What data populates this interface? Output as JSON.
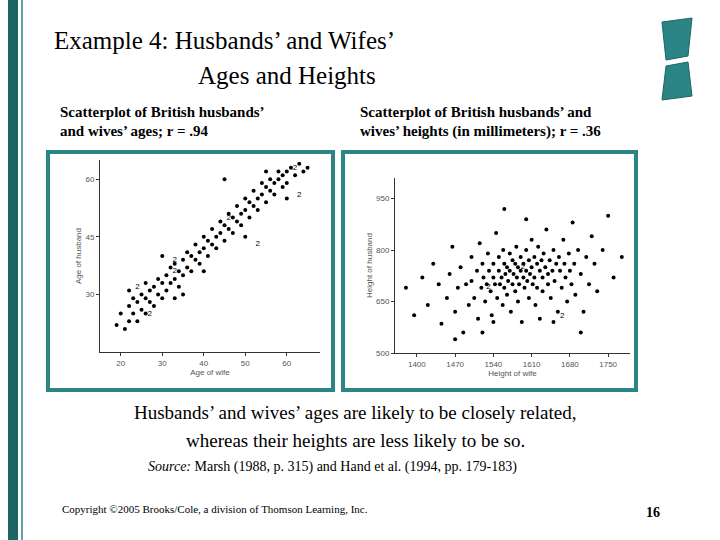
{
  "slide": {
    "title": [
      "Example 4: Husbands’ and Wifes’",
      "Ages and Heights"
    ],
    "caption": [
      "Husbands’ and wives’ ages are likely to be closely related,",
      "whereas their heights are less likely to be so."
    ],
    "source_label": "Source:",
    "source": "Marsh (1988, p. 315) and Hand et al. (1994, pp. 179-183)",
    "copyright": "Copyright ©2005 Brooks/Cole, a division of Thomson Learning, Inc.",
    "page": 16
  },
  "chart_data": [
    {
      "type": "scatter",
      "title": [
        "Scatterplot of British husbands’",
        "and wives’ ages; r = .94"
      ],
      "x_label": "Age of wife",
      "y_label": "Age of husband",
      "xlim": [
        15,
        68
      ],
      "ylim": [
        15,
        65
      ],
      "xticks": [
        20,
        30,
        40,
        50,
        60
      ],
      "yticks": [
        30,
        45,
        60
      ],
      "grid": false,
      "color": "#000000",
      "marker": "dot",
      "x": [
        19,
        20,
        21,
        22,
        22,
        23,
        23,
        24,
        24,
        25,
        25,
        26,
        26,
        27,
        27,
        28,
        28,
        29,
        29,
        30,
        30,
        31,
        31,
        32,
        32,
        33,
        33,
        34,
        34,
        35,
        35,
        36,
        36,
        37,
        37,
        38,
        38,
        39,
        39,
        40,
        40,
        41,
        41,
        42,
        42,
        43,
        43,
        44,
        44,
        45,
        45,
        46,
        46,
        47,
        47,
        48,
        48,
        49,
        49,
        50,
        50,
        51,
        51,
        52,
        52,
        53,
        53,
        54,
        54,
        55,
        55,
        56,
        56,
        57,
        57,
        58,
        58,
        59,
        59,
        60,
        60,
        61,
        62,
        63,
        64,
        65,
        45,
        30,
        35,
        50,
        55,
        40,
        60,
        33,
        26,
        22,
        27,
        24,
        33,
        33,
        53,
        46,
        62,
        63
      ],
      "values": [
        22,
        25,
        21,
        23,
        27,
        25,
        29,
        23,
        28,
        26,
        30,
        25,
        29,
        28,
        31,
        27,
        32,
        30,
        34,
        29,
        33,
        31,
        35,
        37,
        33,
        34,
        38,
        32,
        36,
        35,
        39,
        37,
        41,
        36,
        40,
        39,
        43,
        41,
        38,
        42,
        45,
        40,
        44,
        43,
        47,
        45,
        42,
        46,
        49,
        44,
        48,
        47,
        51,
        46,
        50,
        49,
        53,
        48,
        51,
        52,
        55,
        50,
        54,
        53,
        57,
        55,
        52,
        56,
        59,
        54,
        58,
        57,
        60,
        56,
        59,
        60,
        62,
        58,
        61,
        62,
        59,
        63,
        61,
        64,
        62,
        63,
        60,
        40,
        30,
        45,
        62,
        36,
        55,
        29,
        33,
        31,
        25,
        32,
        36,
        39,
        43,
        50,
        63,
        56
      ],
      "counts": [
        1,
        1,
        1,
        1,
        1,
        1,
        1,
        1,
        1,
        1,
        1,
        1,
        1,
        1,
        1,
        1,
        1,
        1,
        1,
        1,
        1,
        1,
        1,
        1,
        1,
        1,
        1,
        1,
        1,
        1,
        1,
        1,
        1,
        1,
        1,
        1,
        1,
        1,
        1,
        1,
        1,
        1,
        1,
        1,
        1,
        1,
        1,
        1,
        1,
        1,
        1,
        1,
        1,
        1,
        1,
        1,
        1,
        1,
        1,
        1,
        1,
        1,
        1,
        1,
        1,
        1,
        1,
        1,
        1,
        1,
        1,
        1,
        1,
        1,
        1,
        1,
        1,
        1,
        1,
        1,
        1,
        1,
        1,
        1,
        1,
        1,
        1,
        1,
        1,
        1,
        1,
        1,
        1,
        1,
        1,
        1,
        2,
        2,
        2,
        2,
        2,
        2,
        2,
        2
      ]
    },
    {
      "type": "scatter",
      "title": [
        "Scatterplot of British husbands’ and",
        "wives’ heights (in millimeters); r = .36"
      ],
      "x_label": "Height of wife",
      "y_label": "Height of husband",
      "xlim": [
        1360,
        1790
      ],
      "ylim": [
        500,
        1010
      ],
      "xticks": [
        1400,
        1470,
        1540,
        1610,
        1680,
        1750
      ],
      "yticks": [
        500,
        650,
        800,
        950
      ],
      "grid": false,
      "color": "#000000",
      "marker": "dot",
      "x": [
        1380,
        1395,
        1410,
        1420,
        1430,
        1440,
        1445,
        1455,
        1460,
        1465,
        1470,
        1475,
        1480,
        1485,
        1490,
        1495,
        1500,
        1500,
        1505,
        1510,
        1512,
        1515,
        1518,
        1520,
        1522,
        1525,
        1528,
        1530,
        1532,
        1535,
        1537,
        1540,
        1540,
        1543,
        1545,
        1547,
        1550,
        1550,
        1552,
        1555,
        1557,
        1558,
        1560,
        1560,
        1562,
        1565,
        1565,
        1567,
        1570,
        1570,
        1572,
        1575,
        1575,
        1577,
        1580,
        1580,
        1582,
        1583,
        1585,
        1585,
        1587,
        1590,
        1590,
        1592,
        1595,
        1595,
        1597,
        1600,
        1600,
        1602,
        1605,
        1605,
        1607,
        1610,
        1610,
        1612,
        1615,
        1615,
        1617,
        1620,
        1620,
        1622,
        1625,
        1625,
        1628,
        1630,
        1630,
        1632,
        1635,
        1637,
        1640,
        1640,
        1643,
        1645,
        1648,
        1650,
        1652,
        1655,
        1658,
        1660,
        1662,
        1665,
        1668,
        1670,
        1672,
        1675,
        1678,
        1680,
        1683,
        1685,
        1688,
        1690,
        1695,
        1700,
        1705,
        1710,
        1715,
        1720,
        1725,
        1730,
        1740,
        1750,
        1760,
        1775,
        1560,
        1600,
        1520,
        1470,
        1650,
        1700,
        1540,
        1531,
        1666,
        1594
      ],
      "values": [
        690,
        610,
        720,
        640,
        760,
        700,
        585,
        660,
        730,
        810,
        620,
        690,
        750,
        560,
        700,
        640,
        780,
        710,
        660,
        740,
        600,
        820,
        690,
        760,
        720,
        650,
        700,
        790,
        740,
        680,
        610,
        760,
        720,
        700,
        850,
        660,
        740,
        780,
        700,
        720,
        640,
        800,
        760,
        690,
        730,
        750,
        670,
        710,
        790,
        740,
        620,
        770,
        700,
        730,
        760,
        680,
        810,
        720,
        750,
        650,
        700,
        780,
        740,
        590,
        720,
        760,
        690,
        800,
        740,
        710,
        770,
        660,
        730,
        750,
        830,
        700,
        780,
        720,
        640,
        760,
        690,
        810,
        740,
        600,
        770,
        720,
        680,
        790,
        750,
        860,
        730,
        700,
        770,
        660,
        740,
        800,
        710,
        760,
        620,
        780,
        740,
        690,
        830,
        760,
        720,
        650,
        790,
        740,
        700,
        880,
        760,
        670,
        800,
        730,
        620,
        780,
        700,
        840,
        760,
        680,
        800,
        900,
        720,
        780,
        920,
        890,
        560,
        540,
        590,
        560,
        590,
        693,
        607,
        750
      ],
      "counts": [
        1,
        1,
        1,
        1,
        1,
        1,
        1,
        1,
        1,
        1,
        1,
        1,
        1,
        1,
        1,
        1,
        1,
        1,
        1,
        1,
        1,
        1,
        1,
        1,
        1,
        1,
        1,
        1,
        1,
        1,
        1,
        1,
        1,
        1,
        1,
        1,
        1,
        1,
        1,
        1,
        1,
        1,
        1,
        1,
        1,
        1,
        1,
        1,
        1,
        1,
        1,
        1,
        1,
        1,
        1,
        1,
        1,
        1,
        1,
        1,
        1,
        1,
        1,
        1,
        1,
        1,
        1,
        1,
        1,
        1,
        1,
        1,
        1,
        1,
        1,
        1,
        1,
        1,
        1,
        1,
        1,
        1,
        1,
        1,
        1,
        1,
        1,
        1,
        1,
        1,
        1,
        1,
        1,
        1,
        1,
        1,
        1,
        1,
        1,
        1,
        1,
        1,
        1,
        1,
        1,
        1,
        1,
        1,
        1,
        1,
        1,
        1,
        1,
        1,
        1,
        1,
        1,
        1,
        1,
        1,
        1,
        1,
        1,
        1,
        1,
        1,
        1,
        1,
        1,
        1,
        1,
        2,
        2,
        2
      ]
    }
  ]
}
